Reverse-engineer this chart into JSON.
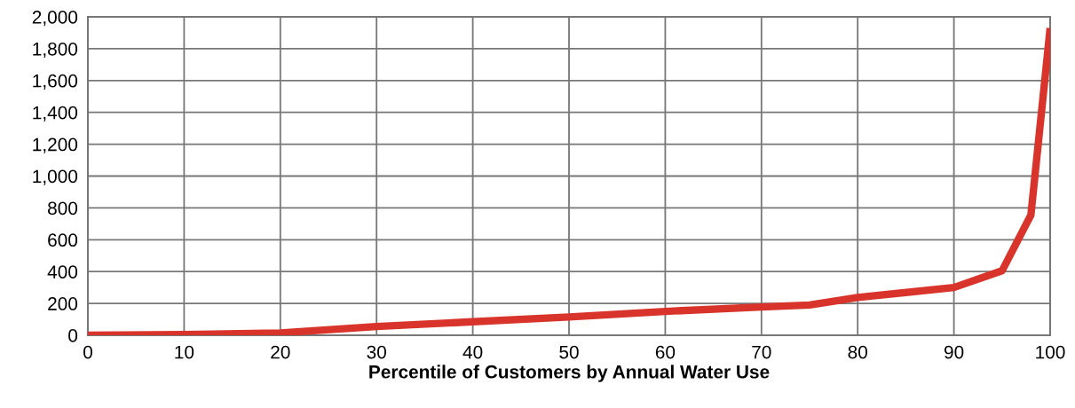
{
  "chart_data": {
    "type": "line",
    "xlabel": "Percentile of Customers by Annual Water Use",
    "x": [
      0,
      10,
      20,
      30,
      40,
      50,
      60,
      70,
      75,
      80,
      90,
      95,
      98,
      100
    ],
    "series": [
      {
        "color": "#d9342b",
        "values": [
          0,
          5,
          15,
          55,
          85,
          115,
          150,
          178,
          190,
          237,
          300,
          405,
          755,
          1930
        ]
      }
    ],
    "xlim": [
      0,
      100
    ],
    "xticks": [
      0,
      10,
      20,
      30,
      40,
      50,
      60,
      70,
      80,
      90,
      100
    ],
    "ylim": [
      0,
      2000
    ],
    "yticks": [
      {
        "value": 0,
        "label": "0"
      },
      {
        "value": 200,
        "label": "200"
      },
      {
        "value": 400,
        "label": "400"
      },
      {
        "value": 600,
        "label": "600"
      },
      {
        "value": 800,
        "label": "800"
      },
      {
        "value": 1000,
        "label": "1,000"
      },
      {
        "value": 1200,
        "label": "1,200"
      },
      {
        "value": 1400,
        "label": "1,400"
      },
      {
        "value": 1600,
        "label": "1,600"
      },
      {
        "value": 1800,
        "label": "1,800"
      },
      {
        "value": 2000,
        "label": "2,000"
      }
    ],
    "grid": true,
    "marker": "none",
    "line_style": "solid",
    "legend": false
  }
}
